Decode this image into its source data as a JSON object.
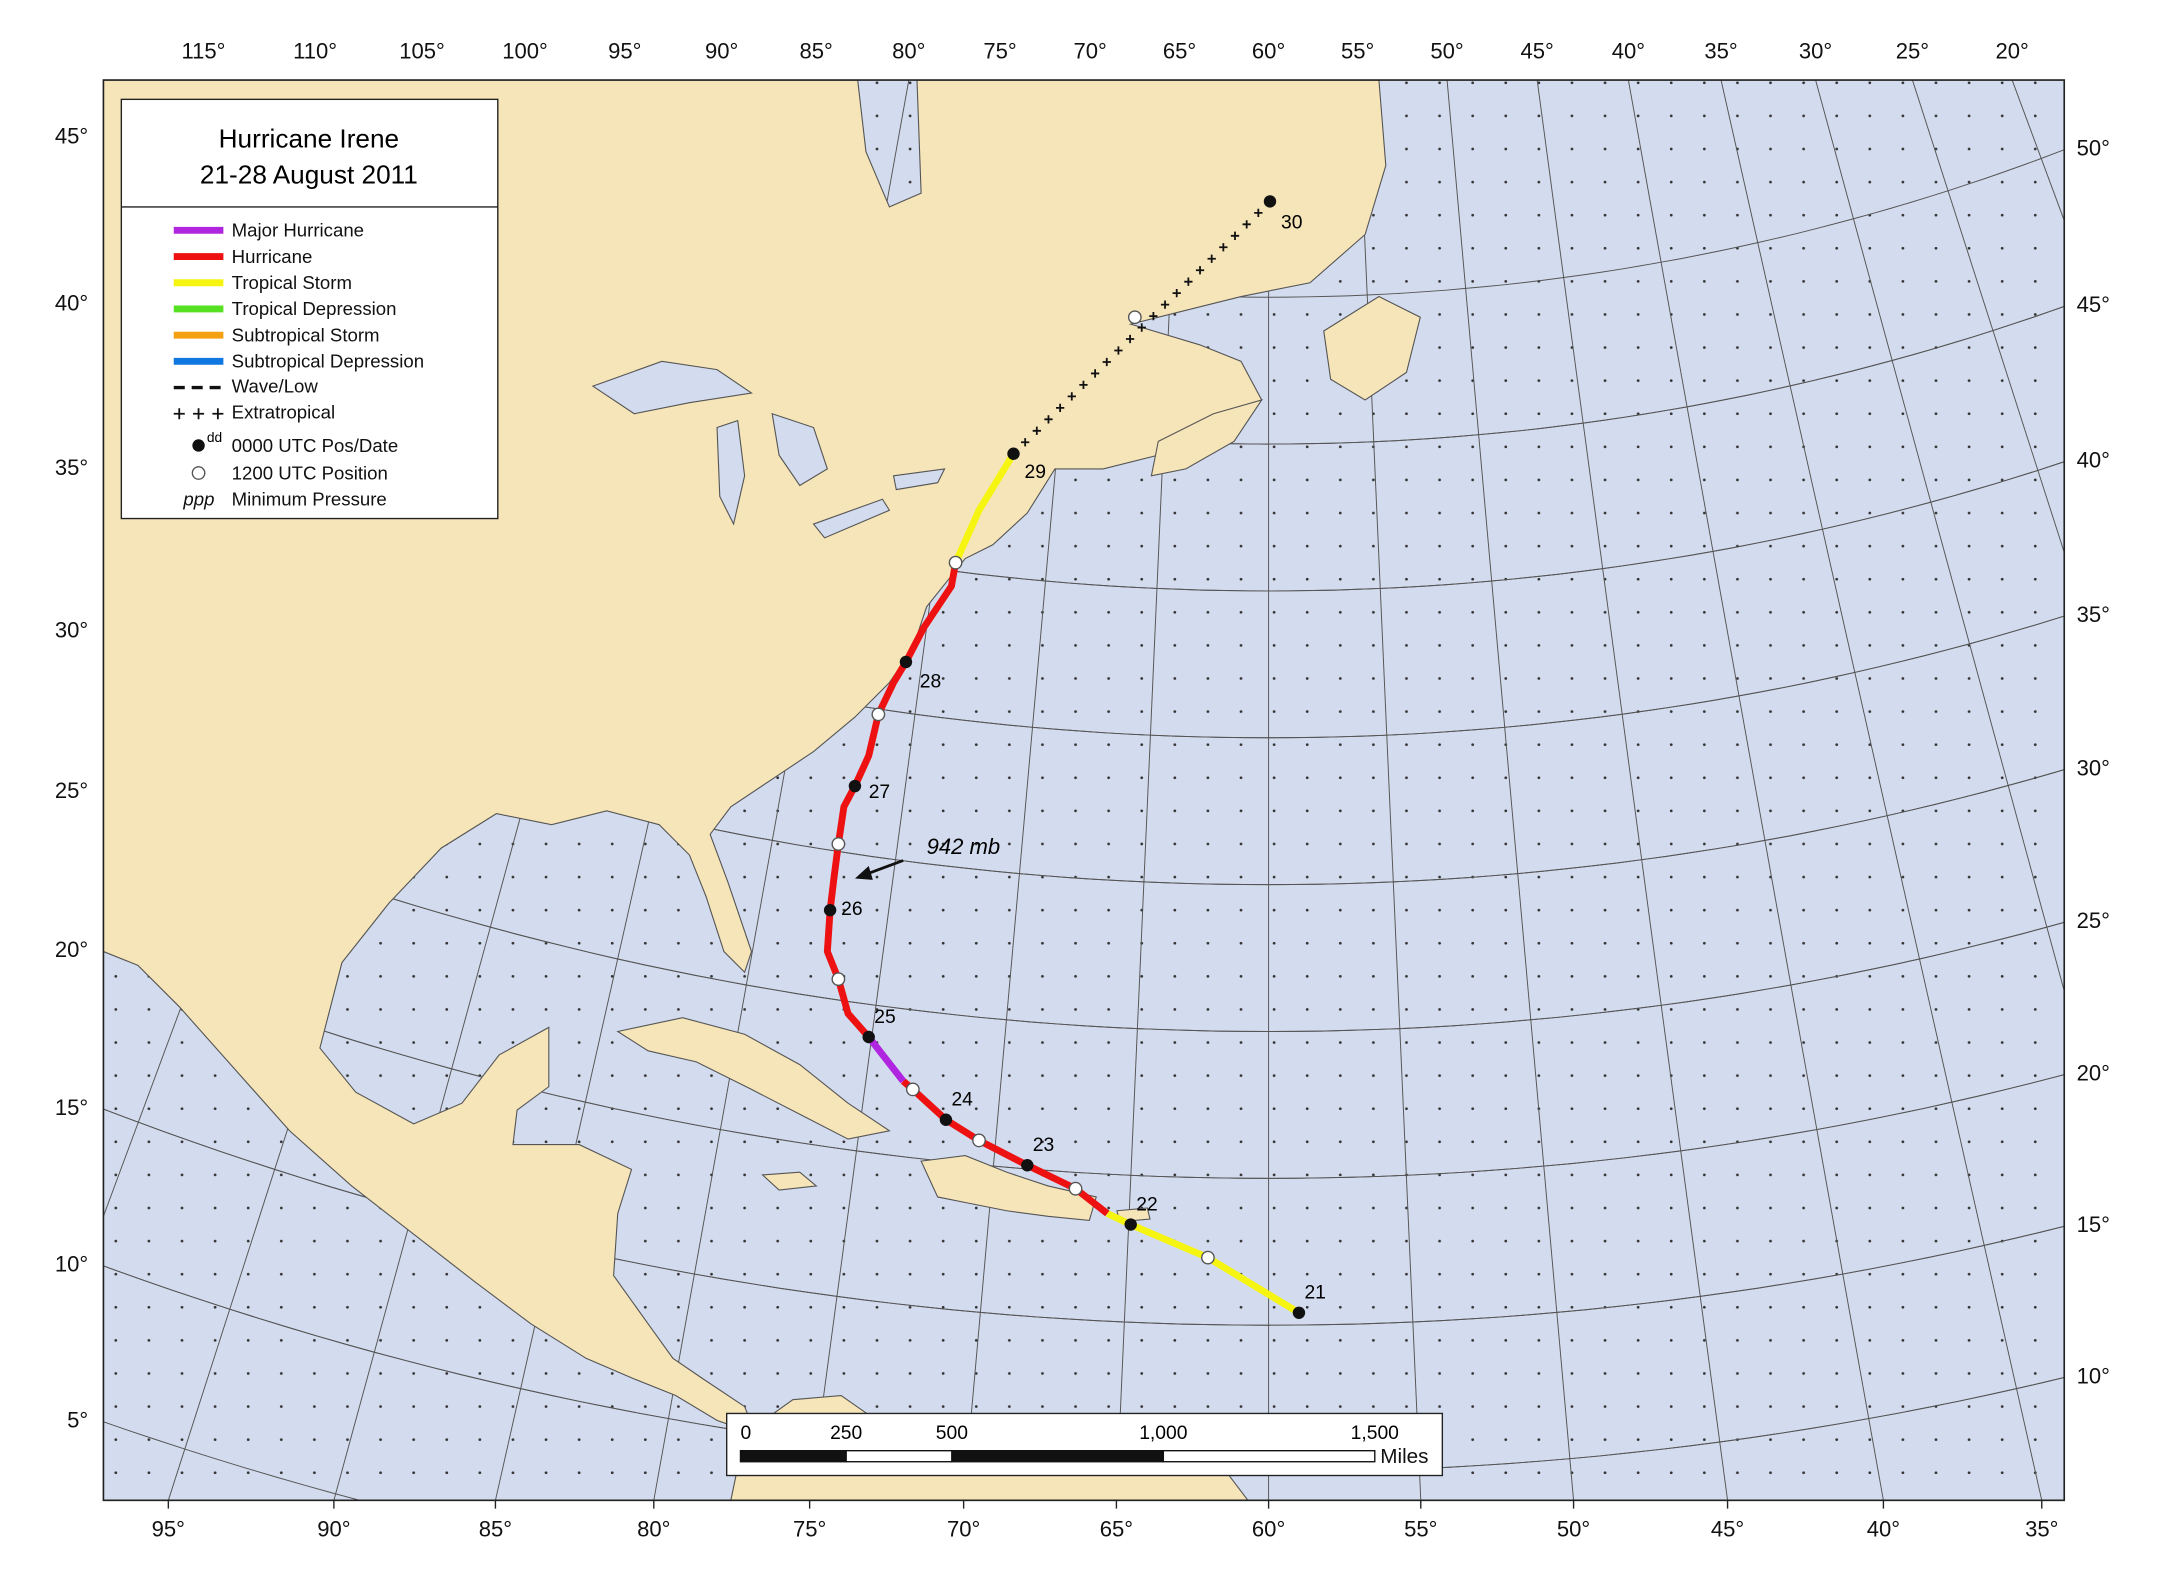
{
  "title_lines": [
    "Hurricane Irene",
    "21-28 August 2011"
  ],
  "legend": {
    "lines": [
      {
        "label": "Major Hurricane",
        "color": "#b026e0"
      },
      {
        "label": "Hurricane",
        "color": "#ee1111"
      },
      {
        "label": "Tropical Storm",
        "color": "#f5f511"
      },
      {
        "label": "Tropical Depression",
        "color": "#55e022"
      },
      {
        "label": "Subtropical Storm",
        "color": "#f5a011"
      },
      {
        "label": "Subtropical Depression",
        "color": "#1177e0"
      }
    ],
    "wave_low": "Wave/Low",
    "extratropical": "Extratropical",
    "pos_date": {
      "sup": "dd",
      "label": "0000 UTC Pos/Date"
    },
    "position_1200": "1200 UTC Position",
    "min_pressure": {
      "symbol": "ppp",
      "label": "Minimum Pressure"
    }
  },
  "top_ticks": [
    {
      "value": 115,
      "label": "115°"
    },
    {
      "value": 110,
      "label": "110°"
    },
    {
      "value": 105,
      "label": "105°"
    },
    {
      "value": 100,
      "label": "100°"
    },
    {
      "value": 95,
      "label": "95°"
    },
    {
      "value": 90,
      "label": "90°"
    },
    {
      "value": 85,
      "label": "85°"
    },
    {
      "value": 80,
      "label": "80°"
    },
    {
      "value": 75,
      "label": "75°"
    },
    {
      "value": 70,
      "label": "70°"
    },
    {
      "value": 65,
      "label": "65°"
    },
    {
      "value": 60,
      "label": "60°"
    },
    {
      "value": 55,
      "label": "55°"
    },
    {
      "value": 50,
      "label": "50°"
    },
    {
      "value": 45,
      "label": "45°"
    },
    {
      "value": 40,
      "label": "40°"
    },
    {
      "value": 35,
      "label": "35°"
    },
    {
      "value": 30,
      "label": "30°"
    },
    {
      "value": 25,
      "label": "25°"
    },
    {
      "value": 20,
      "label": "20°"
    }
  ],
  "bottom_ticks": [
    {
      "value": 95,
      "label": "95°"
    },
    {
      "value": 90,
      "label": "90°"
    },
    {
      "value": 85,
      "label": "85°"
    },
    {
      "value": 80,
      "label": "80°"
    },
    {
      "value": 75,
      "label": "75°"
    },
    {
      "value": 70,
      "label": "70°"
    },
    {
      "value": 65,
      "label": "65°"
    },
    {
      "value": 60,
      "label": "60°"
    },
    {
      "value": 55,
      "label": "55°"
    },
    {
      "value": 50,
      "label": "50°"
    },
    {
      "value": 45,
      "label": "45°"
    },
    {
      "value": 40,
      "label": "40°"
    },
    {
      "value": 35,
      "label": "35°"
    }
  ],
  "left_ticks": [
    {
      "value": 45,
      "label": "45°"
    },
    {
      "value": 40,
      "label": "40°"
    },
    {
      "value": 35,
      "label": "35°"
    },
    {
      "value": 30,
      "label": "30°"
    },
    {
      "value": 25,
      "label": "25°"
    },
    {
      "value": 20,
      "label": "20°"
    },
    {
      "value": 15,
      "label": "15°"
    },
    {
      "value": 10,
      "label": "10°"
    },
    {
      "value": 5,
      "label": "5°"
    }
  ],
  "right_ticks": [
    {
      "value": 50,
      "label": "50°"
    },
    {
      "value": 45,
      "label": "45°"
    },
    {
      "value": 40,
      "label": "40°"
    },
    {
      "value": 35,
      "label": "35°"
    },
    {
      "value": 30,
      "label": "30°"
    },
    {
      "value": 25,
      "label": "25°"
    },
    {
      "value": 20,
      "label": "20°"
    },
    {
      "value": 15,
      "label": "15°"
    },
    {
      "value": 10,
      "label": "10°"
    }
  ],
  "dates": [
    "21",
    "22",
    "23",
    "24",
    "25",
    "26",
    "27",
    "28",
    "29",
    "30"
  ],
  "pressure_label": "942 mb",
  "scale_bar": {
    "ticks": [
      {
        "value": 0,
        "label": "0"
      },
      {
        "value": 250,
        "label": "250"
      },
      {
        "value": 500,
        "label": "500"
      },
      {
        "value": 1000,
        "label": "1,000"
      },
      {
        "value": 1500,
        "label": "1,500"
      }
    ],
    "unit": "Miles"
  }
}
